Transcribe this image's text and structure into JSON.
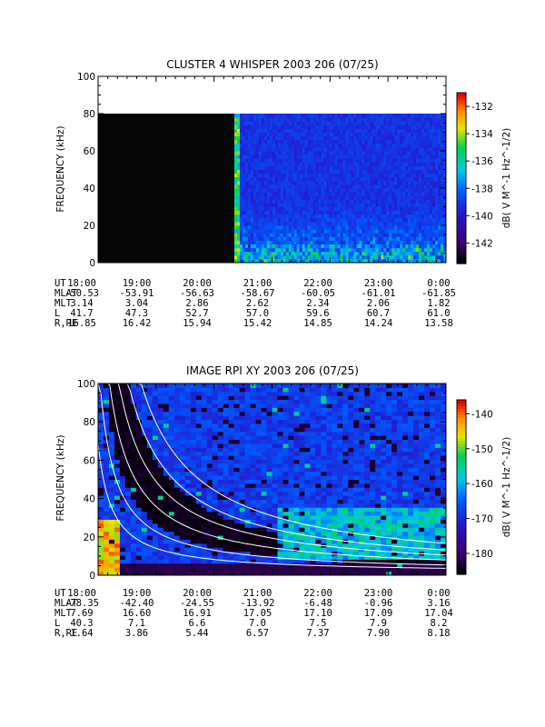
{
  "chart_data": [
    {
      "type": "heatmap",
      "title": "CLUSTER 4 WHISPER 2003 206 (07/25)",
      "ylabel": "FREQUENCY (kHz)",
      "ylim": [
        0,
        100
      ],
      "yticks": [
        "0",
        "20",
        "40",
        "60",
        "80",
        "100"
      ],
      "colorbar_label": "dB( V M^-1 Hz^-1/2)",
      "colorbar_ticks": [
        "-132",
        "-134",
        "-136",
        "-138",
        "-140",
        "-142"
      ],
      "colorbar_range": [
        -143.5,
        -131
      ],
      "ephemeris": {
        "labels": [
          "UT",
          "MLAT",
          "MLT",
          "L",
          "R,RE"
        ],
        "UT": [
          "18:00",
          "19:00",
          "20:00",
          "21:00",
          "22:00",
          "23:00",
          "0:00"
        ],
        "MLAT": [
          "-50.53",
          "-53.91",
          "-56.63",
          "-58.67",
          "-60.05",
          "-61.01",
          "-61.85"
        ],
        "MLT": [
          "3.14",
          "3.04",
          "2.86",
          "2.62",
          "2.34",
          "2.06",
          "1.82"
        ],
        "L": [
          "41.7",
          "47.3",
          "52.7",
          "57.0",
          "59.6",
          "60.7",
          "61.0"
        ],
        "R,RE": [
          "16.85",
          "16.42",
          "15.94",
          "15.42",
          "14.85",
          "14.24",
          "13.58"
        ]
      }
    },
    {
      "type": "heatmap",
      "title": "IMAGE RPI XY 2003 206 (07/25)",
      "ylabel": "FREQUENCY (kHz)",
      "ylim": [
        0,
        100
      ],
      "yticks": [
        "0",
        "20",
        "40",
        "60",
        "80",
        "100"
      ],
      "colorbar_label": "dB( V M^-1 Hz^-1/2)",
      "colorbar_ticks": [
        "-140",
        "-150",
        "-160",
        "-170",
        "-180"
      ],
      "colorbar_range": [
        -186,
        -136
      ],
      "ephemeris": {
        "labels": [
          "UT",
          "MLAT",
          "MLT",
          "L",
          "R,RE"
        ],
        "UT": [
          "18:00",
          "19:00",
          "20:00",
          "21:00",
          "22:00",
          "23:00",
          "0:00"
        ],
        "MLAT": [
          "-78.35",
          "-42.40",
          "-24.55",
          "-13.92",
          "-6.48",
          "-0.96",
          "3.16"
        ],
        "MLT": [
          "7.69",
          "16.60",
          "16.91",
          "17.05",
          "17.10",
          "17.09",
          "17.04"
        ],
        "L": [
          "40.3",
          "7.1",
          "6.6",
          "7.0",
          "7.5",
          "7.9",
          "8.2"
        ],
        "R,RE": [
          "1.64",
          "3.86",
          "5.44",
          "6.57",
          "7.37",
          "7.90",
          "8.18"
        ]
      }
    }
  ]
}
